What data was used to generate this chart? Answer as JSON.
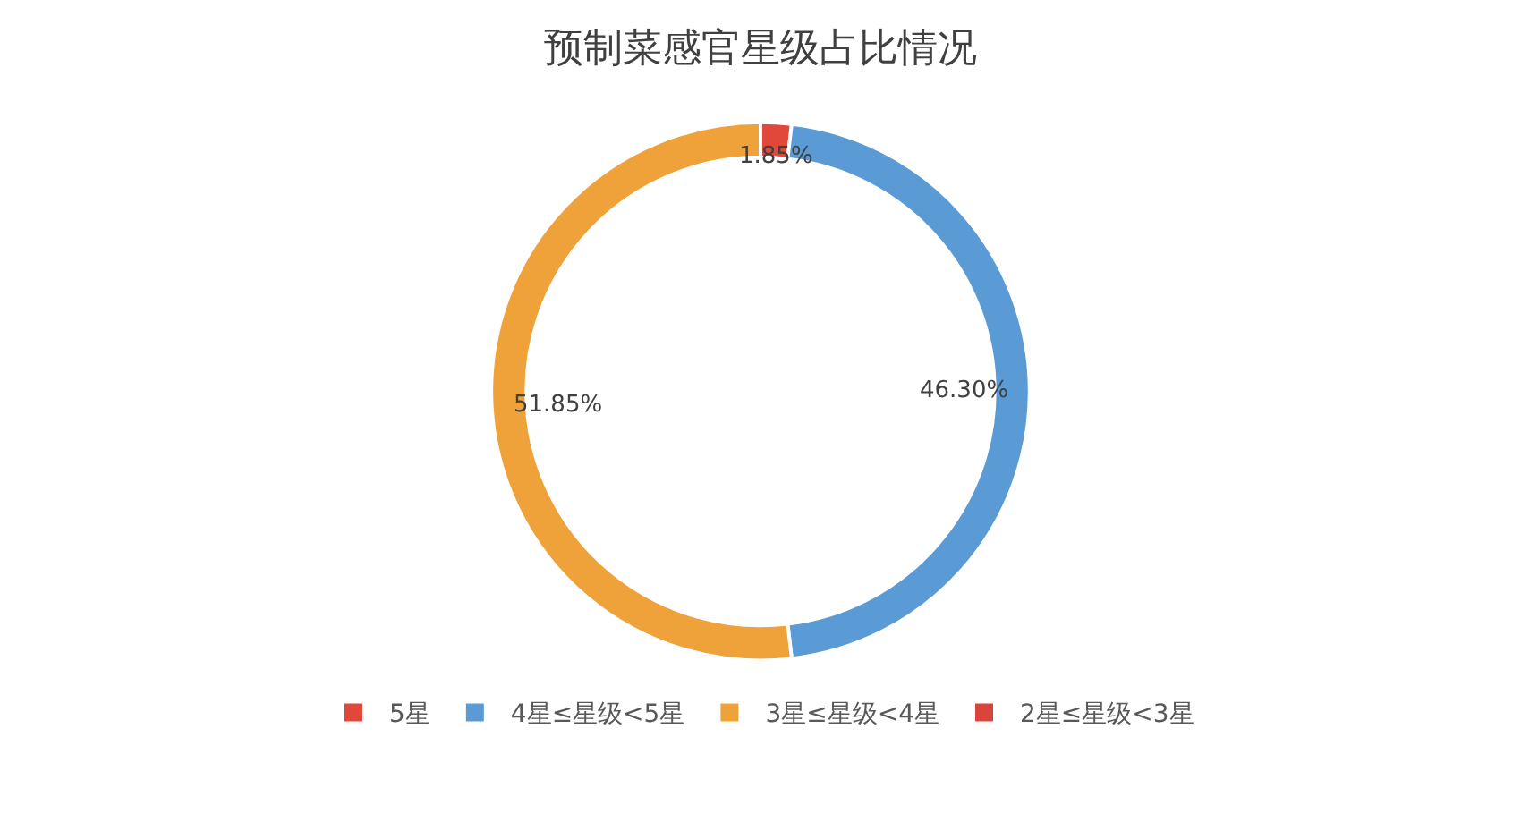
{
  "chart_data": {
    "type": "donut",
    "title": "预制菜感官星级占比情况",
    "categories": [
      "5星",
      "4星≤星级<5星",
      "3星≤星级<4星",
      "2星≤星级<3星"
    ],
    "values": [
      1.85,
      46.3,
      51.85,
      0
    ],
    "value_labels": [
      "1.85%",
      "46.30%",
      "51.85%",
      null
    ],
    "colors": [
      "#e2483a",
      "#5b9bd5",
      "#f0a23a",
      "#d9453b"
    ],
    "legend": "bottom"
  }
}
